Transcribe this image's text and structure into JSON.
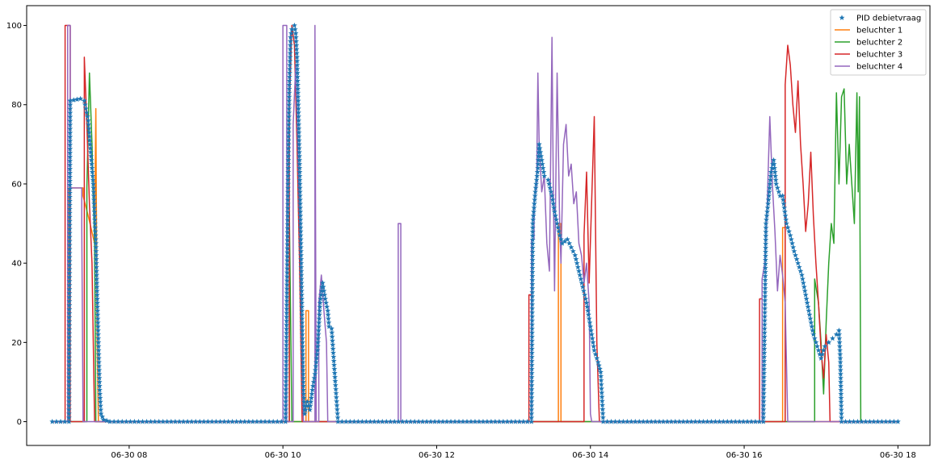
{
  "chart_data": {
    "type": "line",
    "xlim": [
      "06-30 06:40",
      "06-30 18:25"
    ],
    "ylim": [
      -6,
      105
    ],
    "x_ticks": [
      {
        "t": "06-30 08:00",
        "label": "06-30 08"
      },
      {
        "t": "06-30 10:00",
        "label": "06-30 10"
      },
      {
        "t": "06-30 12:00",
        "label": "06-30 12"
      },
      {
        "t": "06-30 14:00",
        "label": "06-30 14"
      },
      {
        "t": "06-30 16:00",
        "label": "06-30 16"
      },
      {
        "t": "06-30 18:00",
        "label": "06-30 18"
      }
    ],
    "y_ticks": [
      0,
      20,
      40,
      60,
      80,
      100
    ],
    "legend_position": "top-right",
    "grid": false,
    "series": [
      {
        "name": "PID debietvraag",
        "kind": "scatter",
        "marker": "star",
        "color": "#1f77b4",
        "points": [
          [
            "06-30 07:00",
            0
          ],
          [
            "06-30 07:13",
            0
          ],
          [
            "06-30 07:14",
            81
          ],
          [
            "06-30 07:22",
            81.5
          ],
          [
            "06-30 07:25",
            81
          ],
          [
            "06-30 07:28",
            76
          ],
          [
            "06-30 07:30",
            68
          ],
          [
            "06-30 07:32",
            60
          ],
          [
            "06-30 07:34",
            45
          ],
          [
            "06-30 07:35",
            32
          ],
          [
            "06-30 07:36",
            20
          ],
          [
            "06-30 07:37",
            8
          ],
          [
            "06-30 07:38",
            2
          ],
          [
            "06-30 07:40",
            0.5
          ],
          [
            "06-30 07:45",
            0
          ],
          [
            "06-30 10:02",
            0
          ],
          [
            "06-30 10:04",
            60
          ],
          [
            "06-30 10:05",
            85
          ],
          [
            "06-30 10:06",
            97
          ],
          [
            "06-30 10:07",
            99
          ],
          [
            "06-30 10:09",
            100
          ],
          [
            "06-30 10:10",
            98
          ],
          [
            "06-30 10:11",
            92
          ],
          [
            "06-30 10:12",
            80
          ],
          [
            "06-30 10:13",
            65
          ],
          [
            "06-30 10:14",
            45
          ],
          [
            "06-30 10:15",
            25
          ],
          [
            "06-30 10:16",
            8
          ],
          [
            "06-30 10:17",
            2
          ],
          [
            "06-30 10:19",
            5
          ],
          [
            "06-30 10:21",
            3
          ],
          [
            "06-30 10:23",
            8
          ],
          [
            "06-30 10:25",
            12
          ],
          [
            "06-30 10:27",
            18
          ],
          [
            "06-30 10:29",
            30
          ],
          [
            "06-30 10:31",
            35
          ],
          [
            "06-30 10:33",
            31
          ],
          [
            "06-30 10:35",
            28
          ],
          [
            "06-30 10:36",
            24
          ],
          [
            "06-30 10:38",
            23.5
          ],
          [
            "06-30 10:43",
            0
          ],
          [
            "06-30 13:14",
            0
          ],
          [
            "06-30 13:15",
            50
          ],
          [
            "06-30 13:17",
            58
          ],
          [
            "06-30 13:19",
            64
          ],
          [
            "06-30 13:20",
            70
          ],
          [
            "06-30 13:22",
            66
          ],
          [
            "06-30 13:24",
            62
          ],
          [
            "06-30 13:27",
            61
          ],
          [
            "06-30 13:30",
            57
          ],
          [
            "06-30 13:32",
            53
          ],
          [
            "06-30 13:34",
            50
          ],
          [
            "06-30 13:36",
            47
          ],
          [
            "06-30 13:38",
            45
          ],
          [
            "06-30 13:42",
            46
          ],
          [
            "06-30 13:45",
            44
          ],
          [
            "06-30 13:48",
            42
          ],
          [
            "06-30 13:51",
            38
          ],
          [
            "06-30 13:54",
            34
          ],
          [
            "06-30 13:57",
            30
          ],
          [
            "06-30 14:00",
            24
          ],
          [
            "06-30 14:03",
            18
          ],
          [
            "06-30 14:06",
            15
          ],
          [
            "06-30 14:08",
            12.5
          ],
          [
            "06-30 14:10",
            0
          ],
          [
            "06-30 16:15",
            0
          ],
          [
            "06-30 16:17",
            50
          ],
          [
            "06-30 16:19",
            56
          ],
          [
            "06-30 16:21",
            63
          ],
          [
            "06-30 16:23",
            66
          ],
          [
            "06-30 16:25",
            60
          ],
          [
            "06-30 16:28",
            57
          ],
          [
            "06-30 16:30",
            57
          ],
          [
            "06-30 16:33",
            50
          ],
          [
            "06-30 16:36",
            47
          ],
          [
            "06-30 16:39",
            43
          ],
          [
            "06-30 16:42",
            40
          ],
          [
            "06-30 16:45",
            37
          ],
          [
            "06-30 16:48",
            32
          ],
          [
            "06-30 16:51",
            27
          ],
          [
            "06-30 16:54",
            22
          ],
          [
            "06-30 16:57",
            19
          ],
          [
            "06-30 17:00",
            16
          ],
          [
            "06-30 17:03",
            19
          ],
          [
            "06-30 17:06",
            20
          ],
          [
            "06-30 17:09",
            21
          ],
          [
            "06-30 17:12",
            22
          ],
          [
            "06-30 17:14",
            23
          ],
          [
            "06-30 17:15",
            16
          ],
          [
            "06-30 17:16",
            0
          ],
          [
            "06-30 18:00",
            0
          ]
        ]
      },
      {
        "name": "beluchter 1",
        "kind": "step",
        "color": "#ff7f0e",
        "points": [
          [
            "06-30 07:00",
            0
          ],
          [
            "06-30 07:13",
            0
          ],
          [
            "06-30 07:13",
            59
          ],
          [
            "06-30 07:24",
            59
          ],
          [
            "06-30 07:24",
            57
          ],
          [
            "06-30 07:28",
            52
          ],
          [
            "06-30 07:33",
            45
          ],
          [
            "06-30 07:34",
            79
          ],
          [
            "06-30 07:35",
            20
          ],
          [
            "06-30 07:36",
            0
          ],
          [
            "06-30 10:18",
            0
          ],
          [
            "06-30 10:18",
            28
          ],
          [
            "06-30 10:20",
            28
          ],
          [
            "06-30 10:20",
            0
          ],
          [
            "06-30 13:35",
            0
          ],
          [
            "06-30 13:35",
            50
          ],
          [
            "06-30 13:37",
            50
          ],
          [
            "06-30 13:37",
            0
          ],
          [
            "06-30 16:30",
            0
          ],
          [
            "06-30 16:30",
            49
          ],
          [
            "06-30 16:32",
            49
          ],
          [
            "06-30 16:32",
            0
          ],
          [
            "06-30 18:00",
            0
          ]
        ]
      },
      {
        "name": "beluchter 2",
        "kind": "step",
        "color": "#2ca02c",
        "points": [
          [
            "06-30 07:00",
            0
          ],
          [
            "06-30 07:27",
            0
          ],
          [
            "06-30 07:27",
            59
          ],
          [
            "06-30 07:29",
            88
          ],
          [
            "06-30 07:31",
            70
          ],
          [
            "06-30 07:33",
            45
          ],
          [
            "06-30 07:34",
            0
          ],
          [
            "06-30 10:05",
            0
          ],
          [
            "06-30 10:05",
            53
          ],
          [
            "06-30 10:07",
            0
          ],
          [
            "06-30 16:55",
            0
          ],
          [
            "06-30 16:55",
            36
          ],
          [
            "06-30 16:58",
            30
          ],
          [
            "06-30 17:00",
            20
          ],
          [
            "06-30 17:02",
            7
          ],
          [
            "06-30 17:04",
            25
          ],
          [
            "06-30 17:06",
            40
          ],
          [
            "06-30 17:08",
            50
          ],
          [
            "06-30 17:10",
            45
          ],
          [
            "06-30 17:12",
            83
          ],
          [
            "06-30 17:14",
            60
          ],
          [
            "06-30 17:16",
            82
          ],
          [
            "06-30 17:18",
            84
          ],
          [
            "06-30 17:20",
            60
          ],
          [
            "06-30 17:22",
            70
          ],
          [
            "06-30 17:24",
            60
          ],
          [
            "06-30 17:26",
            50
          ],
          [
            "06-30 17:28",
            83
          ],
          [
            "06-30 17:29",
            58
          ],
          [
            "06-30 17:30",
            82
          ],
          [
            "06-30 17:31",
            0
          ],
          [
            "06-30 18:00",
            0
          ]
        ]
      },
      {
        "name": "beluchter 3",
        "kind": "step",
        "color": "#d62728",
        "points": [
          [
            "06-30 07:00",
            0
          ],
          [
            "06-30 07:10",
            0
          ],
          [
            "06-30 07:10",
            100
          ],
          [
            "06-30 07:14",
            100
          ],
          [
            "06-30 07:14",
            0
          ],
          [
            "06-30 07:25",
            0
          ],
          [
            "06-30 07:25",
            92
          ],
          [
            "06-30 07:27",
            75
          ],
          [
            "06-30 07:29",
            55
          ],
          [
            "06-30 07:31",
            40
          ],
          [
            "06-30 07:33",
            0
          ],
          [
            "06-30 10:05",
            0
          ],
          [
            "06-30 10:05",
            80
          ],
          [
            "06-30 10:07",
            100
          ],
          [
            "06-30 10:09",
            95
          ],
          [
            "06-30 10:11",
            70
          ],
          [
            "06-30 10:13",
            40
          ],
          [
            "06-30 10:15",
            0
          ],
          [
            "06-30 13:12",
            0
          ],
          [
            "06-30 13:12",
            32
          ],
          [
            "06-30 13:14",
            32
          ],
          [
            "06-30 13:14",
            0
          ],
          [
            "06-30 13:55",
            0
          ],
          [
            "06-30 13:55",
            47
          ],
          [
            "06-30 13:57",
            63
          ],
          [
            "06-30 13:59",
            35
          ],
          [
            "06-30 14:01",
            56
          ],
          [
            "06-30 14:03",
            77
          ],
          [
            "06-30 14:05",
            20
          ],
          [
            "06-30 14:07",
            0
          ],
          [
            "06-30 16:12",
            0
          ],
          [
            "06-30 16:12",
            31
          ],
          [
            "06-30 16:14",
            31
          ],
          [
            "06-30 16:14",
            0
          ],
          [
            "06-30 16:32",
            0
          ],
          [
            "06-30 16:32",
            85
          ],
          [
            "06-30 16:34",
            95
          ],
          [
            "06-30 16:36",
            90
          ],
          [
            "06-30 16:38",
            80
          ],
          [
            "06-30 16:40",
            73
          ],
          [
            "06-30 16:42",
            86
          ],
          [
            "06-30 16:44",
            70
          ],
          [
            "06-30 16:46",
            60
          ],
          [
            "06-30 16:48",
            48
          ],
          [
            "06-30 16:50",
            55
          ],
          [
            "06-30 16:52",
            68
          ],
          [
            "06-30 16:54",
            52
          ],
          [
            "06-30 16:56",
            40
          ],
          [
            "06-30 16:58",
            30
          ],
          [
            "06-30 17:00",
            18
          ],
          [
            "06-30 17:02",
            11
          ],
          [
            "06-30 17:04",
            22
          ],
          [
            "06-30 17:06",
            15
          ],
          [
            "06-30 17:07",
            0
          ],
          [
            "06-30 18:00",
            0
          ]
        ]
      },
      {
        "name": "beluchter 4",
        "kind": "step",
        "color": "#9467bd",
        "points": [
          [
            "06-30 07:00",
            0
          ],
          [
            "06-30 07:12",
            0
          ],
          [
            "06-30 07:12",
            100
          ],
          [
            "06-30 07:14",
            100
          ],
          [
            "06-30 07:14",
            59
          ],
          [
            "06-30 07:23",
            59
          ],
          [
            "06-30 07:23",
            50
          ],
          [
            "06-30 07:24",
            0
          ],
          [
            "06-30 10:00",
            0
          ],
          [
            "06-30 10:00",
            100
          ],
          [
            "06-30 10:03",
            100
          ],
          [
            "06-30 10:03",
            0
          ],
          [
            "06-30 10:08",
            0
          ],
          [
            "06-30 10:08",
            75
          ],
          [
            "06-30 10:10",
            90
          ],
          [
            "06-30 10:12",
            65
          ],
          [
            "06-30 10:14",
            40
          ],
          [
            "06-30 10:16",
            0
          ],
          [
            "06-30 10:25",
            0
          ],
          [
            "06-30 10:25",
            100
          ],
          [
            "06-30 10:26",
            0
          ],
          [
            "06-30 10:28",
            0
          ],
          [
            "06-30 10:28",
            30
          ],
          [
            "06-30 10:30",
            37
          ],
          [
            "06-30 10:32",
            28
          ],
          [
            "06-30 10:34",
            20
          ],
          [
            "06-30 10:35",
            0
          ],
          [
            "06-30 11:30",
            0
          ],
          [
            "06-30 11:30",
            50
          ],
          [
            "06-30 11:32",
            50
          ],
          [
            "06-30 11:32",
            0
          ],
          [
            "06-30 13:14",
            0
          ],
          [
            "06-30 13:14",
            46
          ],
          [
            "06-30 13:16",
            46
          ],
          [
            "06-30 13:16",
            55
          ],
          [
            "06-30 13:18",
            60
          ],
          [
            "06-30 13:19",
            88
          ],
          [
            "06-30 13:20",
            70
          ],
          [
            "06-30 13:22",
            58
          ],
          [
            "06-30 13:24",
            62
          ],
          [
            "06-30 13:26",
            45
          ],
          [
            "06-30 13:28",
            38
          ],
          [
            "06-30 13:30",
            97
          ],
          [
            "06-30 13:31",
            60
          ],
          [
            "06-30 13:32",
            33
          ],
          [
            "06-30 13:34",
            88
          ],
          [
            "06-30 13:36",
            50
          ],
          [
            "06-30 13:37",
            40
          ],
          [
            "06-30 13:39",
            70
          ],
          [
            "06-30 13:41",
            75
          ],
          [
            "06-30 13:43",
            62
          ],
          [
            "06-30 13:45",
            65
          ],
          [
            "06-30 13:47",
            55
          ],
          [
            "06-30 13:49",
            58
          ],
          [
            "06-30 13:51",
            45
          ],
          [
            "06-30 13:53",
            42
          ],
          [
            "06-30 13:55",
            35
          ],
          [
            "06-30 13:57",
            40
          ],
          [
            "06-30 13:59",
            30
          ],
          [
            "06-30 14:00",
            2
          ],
          [
            "06-30 14:01",
            0
          ],
          [
            "06-30 16:14",
            0
          ],
          [
            "06-30 16:14",
            36
          ],
          [
            "06-30 16:16",
            40
          ],
          [
            "06-30 16:18",
            55
          ],
          [
            "06-30 16:20",
            77
          ],
          [
            "06-30 16:22",
            60
          ],
          [
            "06-30 16:24",
            48
          ],
          [
            "06-30 16:26",
            33
          ],
          [
            "06-30 16:28",
            42
          ],
          [
            "06-30 16:30",
            37
          ],
          [
            "06-30 16:32",
            30
          ],
          [
            "06-30 16:34",
            0
          ],
          [
            "06-30 18:00",
            0
          ]
        ]
      }
    ]
  }
}
